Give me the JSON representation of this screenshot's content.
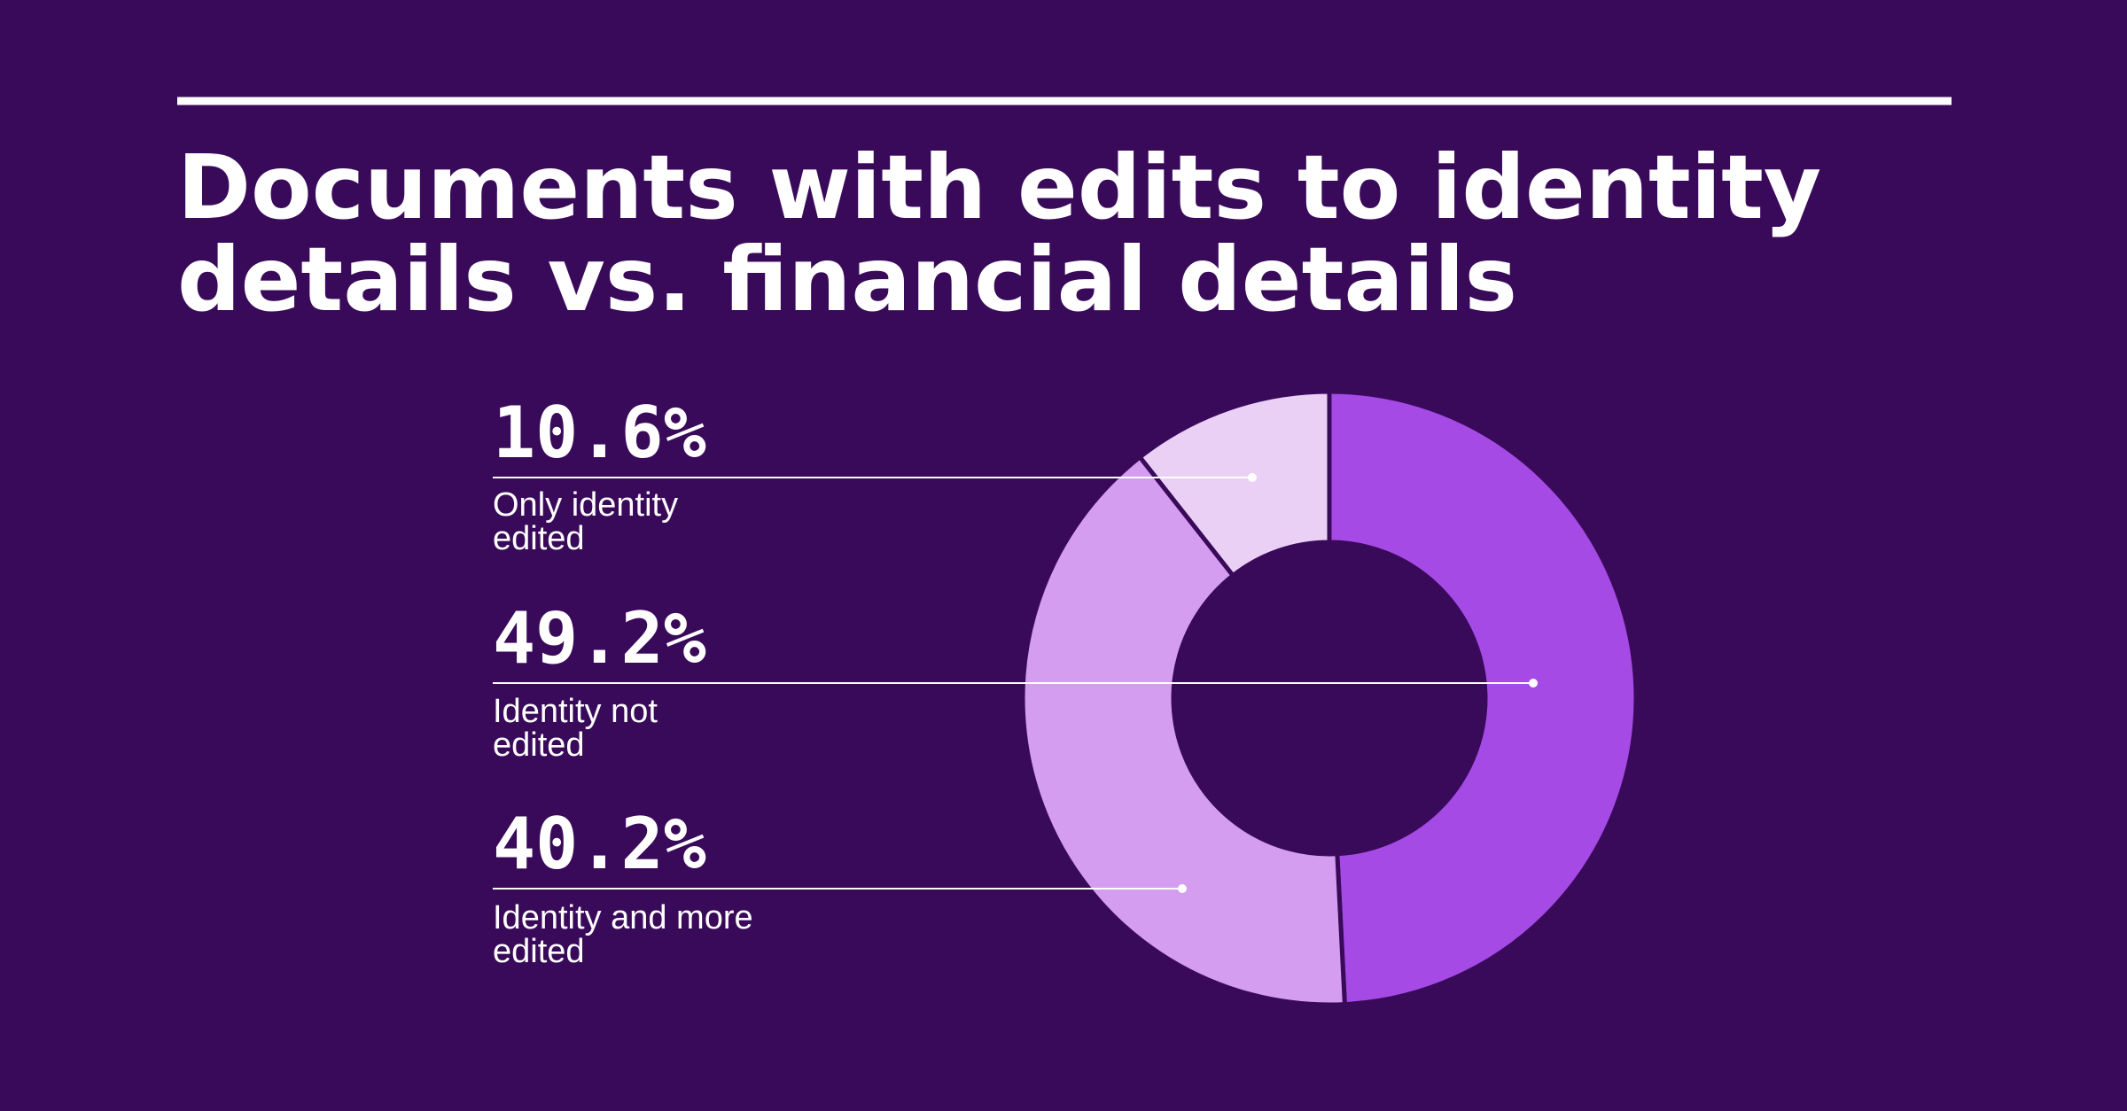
{
  "colors": {
    "background": "#3a0a5a",
    "text": "#ffffff",
    "rule": "#ffffff",
    "leader": "#ffffff"
  },
  "chart_data": {
    "type": "pie",
    "style": "donut",
    "title": "Documents with edits to identity details vs. financial details",
    "title_lines": [
      "Documents with edits to identity",
      "details vs. financial details"
    ],
    "legend_placement": "left",
    "slices": [
      {
        "value": 10.6,
        "value_label": "10.6%",
        "label_lines": [
          "Only identity",
          "edited"
        ],
        "color": "#ead0f5"
      },
      {
        "value": 49.2,
        "value_label": "49.2%",
        "label_lines": [
          "Identity not",
          "edited"
        ],
        "color": "#a64ae6"
      },
      {
        "value": 40.2,
        "value_label": "40.2%",
        "label_lines": [
          "Identity and more",
          "edited"
        ],
        "color": "#d49def"
      }
    ]
  }
}
